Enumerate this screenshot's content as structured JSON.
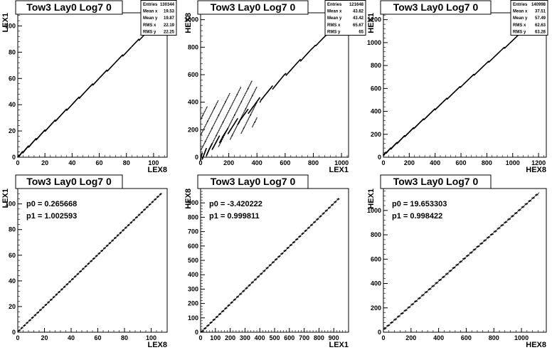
{
  "chart_data": [
    {
      "type": "scatter",
      "title": "Tow3 Lay0 Log7 0",
      "xlabel": "LEX8",
      "ylabel": "LEX1",
      "xlim": [
        0,
        110
      ],
      "ylim": [
        0,
        110
      ],
      "xticks": [
        0,
        20,
        40,
        60,
        80,
        100
      ],
      "yticks": [
        0,
        20,
        40,
        60,
        80,
        100
      ],
      "stats": [
        {
          "label": "Entries",
          "value": "130344"
        },
        {
          "label": "Mean x",
          "value": "19.53"
        },
        {
          "label": "Mean y",
          "value": "19.87"
        },
        {
          "label": "RMS x",
          "value": "22.19"
        },
        {
          "label": "RMS y",
          "value": "22.25"
        }
      ],
      "relation": {
        "slope": 1.0,
        "intercept": 0.27,
        "x_range": [
          0,
          108
        ]
      }
    },
    {
      "type": "scatter",
      "title": "Tow3 Lay0 Log7 0",
      "xlabel": "LEX1",
      "ylabel": "HEX8",
      "xlim": [
        0,
        1050
      ],
      "ylim": [
        0,
        1050
      ],
      "xticks": [
        0,
        200,
        400,
        600,
        800,
        1000
      ],
      "yticks": [
        0,
        200,
        400,
        600,
        800,
        1000
      ],
      "stats": [
        {
          "label": "Entries",
          "value": "121648"
        },
        {
          "label": "Mean x",
          "value": "43.82"
        },
        {
          "label": "Mean y",
          "value": "43.42"
        },
        {
          "label": "RMS x",
          "value": "65.67"
        },
        {
          "label": "RMS y",
          "value": "65"
        }
      ],
      "relation": {
        "slope": 1.0,
        "intercept": -3.4,
        "x_range": [
          0,
          950
        ]
      }
    },
    {
      "type": "scatter",
      "title": "Tow3 Lay0 Log7 0",
      "xlabel": "HEX8",
      "ylabel": "HEX1",
      "xlim": [
        0,
        1260
      ],
      "ylim": [
        0,
        1260
      ],
      "xticks": [
        0,
        200,
        400,
        600,
        800,
        1000,
        1200
      ],
      "yticks": [
        0,
        200,
        400,
        600,
        800,
        1000,
        1200
      ],
      "stats": [
        {
          "label": "Entries",
          "value": "140998"
        },
        {
          "label": "Mean x",
          "value": "37.51"
        },
        {
          "label": "Mean y",
          "value": "57.49"
        },
        {
          "label": "RMS x",
          "value": "62.63"
        },
        {
          "label": "RMS y",
          "value": "63.28"
        }
      ],
      "relation": {
        "slope": 1.0,
        "intercept": 19.6,
        "x_range": [
          0,
          1050
        ]
      }
    },
    {
      "type": "line",
      "title": "Tow3 Lay0 Log7 0",
      "xlabel": "LEX8",
      "ylabel": "LEX1",
      "xlim": [
        0,
        112
      ],
      "ylim": [
        0,
        112
      ],
      "xticks": [
        0,
        20,
        40,
        60,
        80,
        100
      ],
      "yticks": [
        0,
        20,
        40,
        60,
        80,
        100
      ],
      "fit": {
        "p0_label": "p0 = 0.265668",
        "p1_label": "p1 = 1.002593",
        "p0": 0.265668,
        "p1": 1.002593,
        "x_range": [
          0,
          108
        ]
      },
      "profile": {
        "x_start": 1,
        "x_end": 108,
        "step": 2
      }
    },
    {
      "type": "line",
      "title": "Tow3 Lay0 Log7 0",
      "xlabel": "LEX1",
      "ylabel": "HEX8",
      "xlim": [
        0,
        1000
      ],
      "ylim": [
        0,
        1000
      ],
      "xticks": [
        0,
        100,
        200,
        300,
        400,
        500,
        600,
        700,
        800,
        900
      ],
      "yticks": [
        0,
        100,
        200,
        300,
        400,
        500,
        600,
        700,
        800,
        900
      ],
      "fit": {
        "p0_label": "p0 = -3.420222",
        "p1_label": "p1 = 0.999811",
        "p0": -3.420222,
        "p1": 0.999811,
        "x_range": [
          0,
          935
        ]
      },
      "profile": {
        "x_start": 10,
        "x_end": 935,
        "step": 20
      }
    },
    {
      "type": "line",
      "title": "Tow3 Lay0 Log7 0",
      "xlabel": "HEX8",
      "ylabel": "HEX1",
      "xlim": [
        0,
        1180
      ],
      "ylim": [
        0,
        1180
      ],
      "xticks": [
        0,
        200,
        400,
        600,
        800,
        1000
      ],
      "yticks": [
        0,
        200,
        400,
        600,
        800,
        1000,
        1200
      ],
      "fit": {
        "p0_label": "p0 = 19.653303",
        "p1_label": "p1 = 0.998422",
        "p0": 19.653303,
        "p1": 0.998422,
        "x_range": [
          0,
          1130
        ]
      },
      "profile": {
        "x_start": 10,
        "x_end": 1130,
        "step": 25
      }
    }
  ]
}
